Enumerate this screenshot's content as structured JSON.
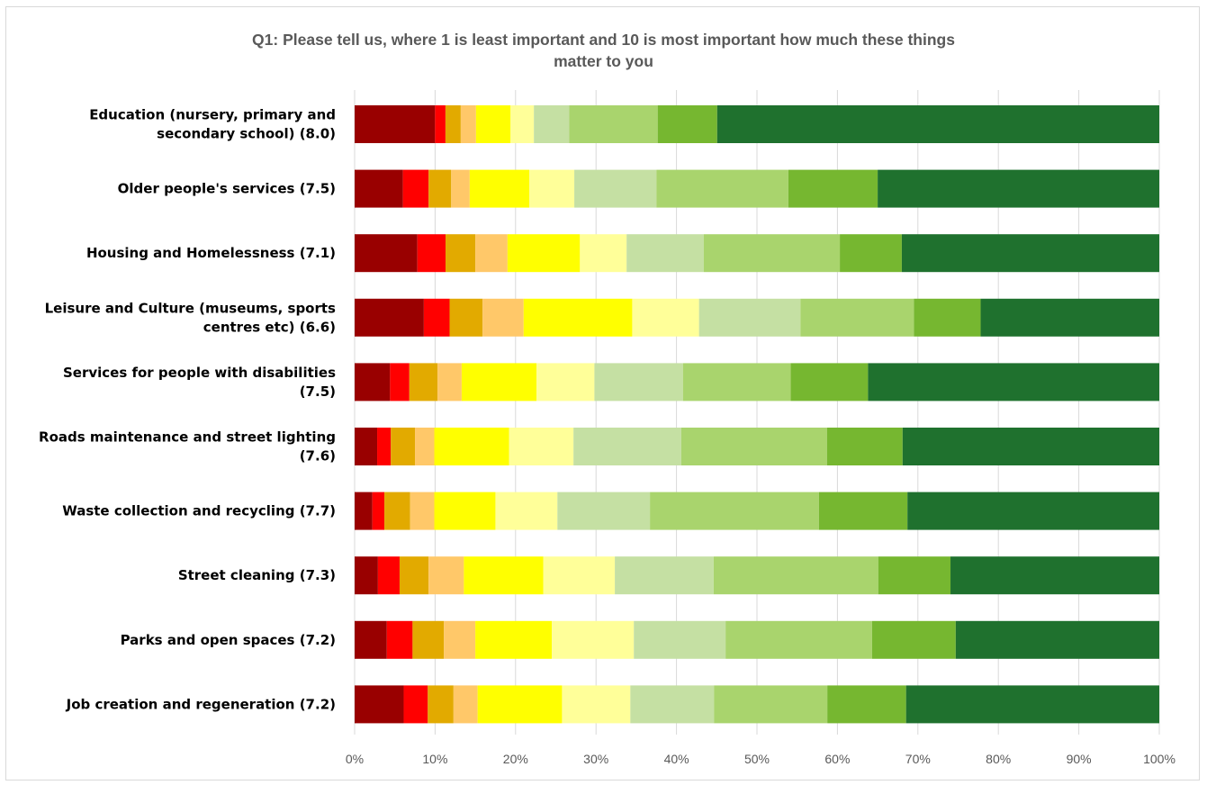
{
  "chart_data": {
    "type": "bar",
    "orientation": "horizontal",
    "stacked": "percent",
    "title": "Q1:  Please tell us, where 1 is least important and 10 is most important how much these things matter to you",
    "title_lines": [
      "Q1:  Please tell us, where 1 is least important and 10 is most important how much these things",
      "matter to you"
    ],
    "categories": [
      "Education (nursery, primary and secondary school) (8.0)",
      "Older people's services (7.5)",
      "Housing and Homelessness (7.1)",
      "Leisure and Culture (museums, sports centres etc) (6.6)",
      "Services for people with disabilities (7.5)",
      "Roads maintenance and street lighting (7.6)",
      "Waste collection and recycling (7.7)",
      "Street cleaning (7.3)",
      "Parks and open spaces (7.2)",
      "Job creation and regeneration (7.2)"
    ],
    "category_lines": [
      [
        "Education (nursery, primary and",
        "secondary school) (8.0)"
      ],
      [
        "Older people's services (7.5)"
      ],
      [
        "Housing and Homelessness (7.1)"
      ],
      [
        "Leisure and Culture (museums, sports",
        "centres etc) (6.6)"
      ],
      [
        "Services for people with disabilities",
        "(7.5)"
      ],
      [
        "Roads maintenance and street lighting",
        "(7.6)"
      ],
      [
        "Waste collection and recycling (7.7)"
      ],
      [
        "Street cleaning (7.3)"
      ],
      [
        "Parks and open spaces (7.2)"
      ],
      [
        "Job creation and regeneration (7.2)"
      ]
    ],
    "series": [
      {
        "color": "#990000",
        "values": [
          10.0,
          6.0,
          7.8,
          8.6,
          4.4,
          2.8,
          2.2,
          2.9,
          4.0,
          6.1
        ]
      },
      {
        "color": "#ff0000",
        "values": [
          1.3,
          3.2,
          3.5,
          3.2,
          2.4,
          1.7,
          1.5,
          2.7,
          3.2,
          3.0
        ]
      },
      {
        "color": "#e2aa00",
        "values": [
          1.9,
          2.8,
          3.7,
          4.1,
          3.5,
          3.0,
          3.2,
          3.6,
          3.9,
          3.2
        ]
      },
      {
        "color": "#ffc869",
        "values": [
          1.9,
          2.3,
          4.0,
          5.1,
          3.0,
          2.4,
          3.0,
          4.4,
          3.9,
          3.0
        ]
      },
      {
        "color": "#ffff00",
        "values": [
          4.3,
          7.4,
          9.0,
          13.5,
          9.3,
          9.3,
          7.6,
          9.9,
          9.5,
          10.5
        ]
      },
      {
        "color": "#ffff99",
        "values": [
          2.9,
          5.6,
          5.8,
          8.3,
          7.2,
          8.0,
          7.7,
          8.9,
          10.2,
          8.5
        ]
      },
      {
        "color": "#c5e0a3",
        "values": [
          4.4,
          10.2,
          9.6,
          12.6,
          11.0,
          13.4,
          11.5,
          12.3,
          11.4,
          10.4
        ]
      },
      {
        "color": "#a9d46d",
        "values": [
          11.0,
          16.4,
          16.9,
          14.1,
          13.4,
          18.1,
          21.0,
          20.5,
          18.2,
          14.1
        ]
      },
      {
        "color": "#76b730",
        "values": [
          7.4,
          11.1,
          7.7,
          8.3,
          9.6,
          9.4,
          11.0,
          9.0,
          10.4,
          9.8
        ]
      },
      {
        "color": "#1f712e",
        "values": [
          55.0,
          35.0,
          32.0,
          22.2,
          36.2,
          31.9,
          31.3,
          26.0,
          25.3,
          31.5
        ]
      }
    ],
    "xlim": [
      0,
      100
    ],
    "x_ticks": [
      "0%",
      "10%",
      "20%",
      "30%",
      "40%",
      "50%",
      "60%",
      "70%",
      "80%",
      "90%",
      "100%"
    ],
    "grid": true,
    "legend": "none"
  }
}
